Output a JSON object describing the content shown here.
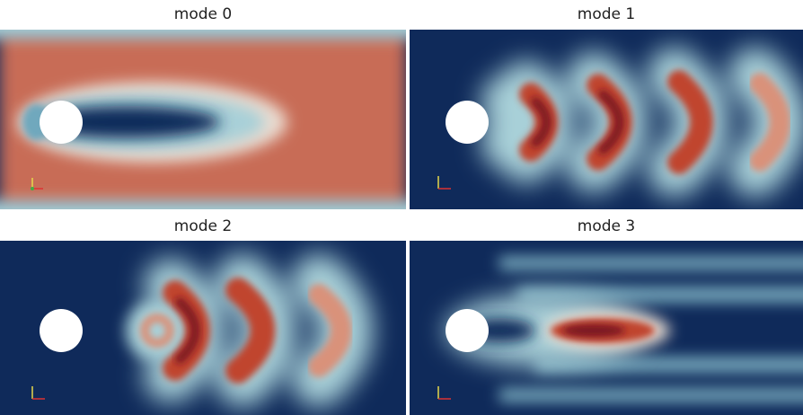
{
  "panels": [
    {
      "title": "mode 0"
    },
    {
      "title": "mode 1"
    },
    {
      "title": "mode 2"
    },
    {
      "title": "mode 3"
    }
  ]
}
